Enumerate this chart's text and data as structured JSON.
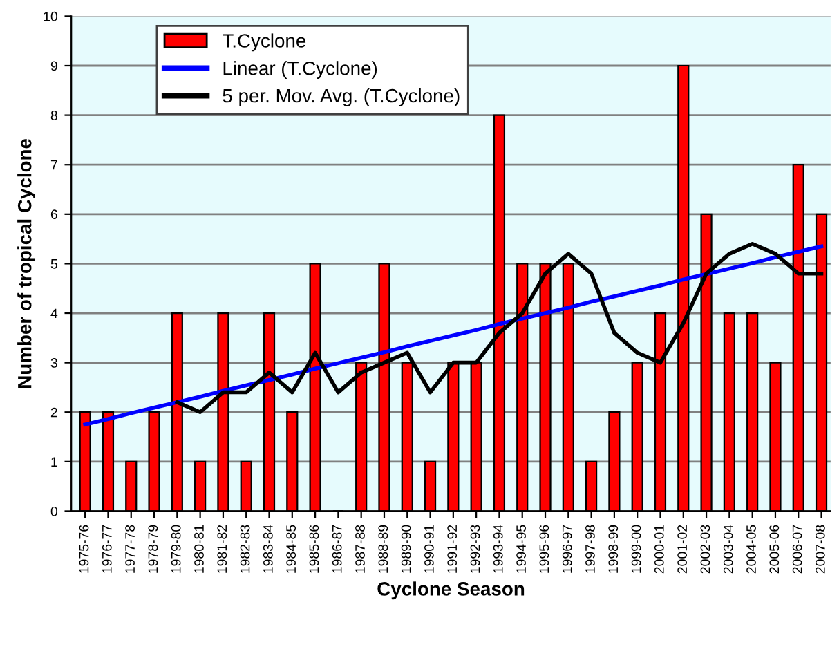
{
  "chart_data": {
    "type": "bar",
    "xlabel": "Cyclone Season",
    "ylabel": "Number of tropical Cyclone",
    "categories": [
      "1975-76",
      "1976-77",
      "1977-78",
      "1978-79",
      "1979-80",
      "1980-81",
      "1981-82",
      "1982-83",
      "1983-84",
      "1984-85",
      "1985-86",
      "1986-87",
      "1987-88",
      "1988-89",
      "1989-90",
      "1990-91",
      "1991-92",
      "1992-93",
      "1993-94",
      "1994-95",
      "1995-96",
      "1996-97",
      "1997-98",
      "1998-99",
      "1999-00",
      "2000-01",
      "2001-02",
      "2002-03",
      "2003-04",
      "2004-05",
      "2005-06",
      "2006-07",
      "2007-08"
    ],
    "series": [
      {
        "name": "T.Cyclone",
        "color": "#ff0000",
        "values": [
          2,
          2,
          1,
          2,
          4,
          1,
          4,
          1,
          4,
          2,
          5,
          0,
          3,
          5,
          3,
          1,
          3,
          3,
          8,
          5,
          5,
          5,
          1,
          2,
          3,
          4,
          9,
          6,
          4,
          4,
          3,
          7,
          6
        ]
      },
      {
        "name": "Linear (T.Cyclone)",
        "type": "line",
        "color": "#0000ff",
        "values": [
          1.75,
          1.86,
          1.98,
          2.09,
          2.2,
          2.31,
          2.43,
          2.54,
          2.65,
          2.76,
          2.88,
          2.99,
          3.1,
          3.21,
          3.33,
          3.44,
          3.55,
          3.66,
          3.78,
          3.89,
          4.0,
          4.11,
          4.23,
          4.34,
          4.45,
          4.56,
          4.68,
          4.79,
          4.9,
          5.01,
          5.13,
          5.24,
          5.35
        ]
      },
      {
        "name": "5 per. Mov. Avg. (T.Cyclone)",
        "type": "line",
        "color": "#000000",
        "values": [
          null,
          null,
          null,
          null,
          2.2,
          2.0,
          2.4,
          2.4,
          2.8,
          2.4,
          3.2,
          2.4,
          2.8,
          3.0,
          3.2,
          2.4,
          3.0,
          3.0,
          3.6,
          4.0,
          4.8,
          5.2,
          4.8,
          3.6,
          3.2,
          3.0,
          3.8,
          4.8,
          5.2,
          5.4,
          5.2,
          4.8,
          4.8
        ]
      }
    ],
    "ylim": [
      0,
      10
    ],
    "yticks": [
      0,
      1,
      2,
      3,
      4,
      5,
      6,
      7,
      8,
      9,
      10
    ],
    "grid": "y",
    "legend": "top left"
  }
}
